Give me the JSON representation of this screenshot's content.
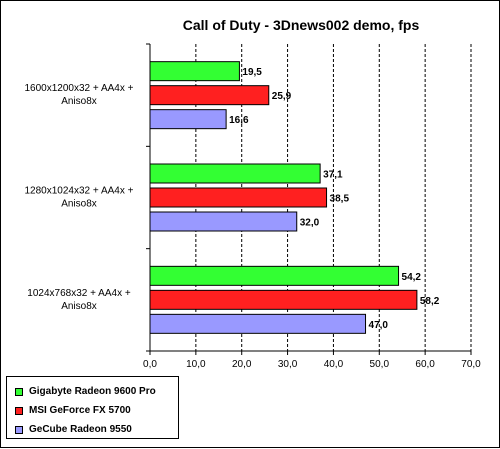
{
  "chart_data": {
    "type": "bar",
    "orientation": "horizontal",
    "title": "Call of Duty - 3Dnews002 demo, fps",
    "categories": [
      [
        "1600x1200x32 + AA4x +",
        "Aniso8x"
      ],
      [
        "1280x1024x32 + AA4x +",
        "Aniso8x"
      ],
      [
        "1024x768x32 + AA4x +",
        "Aniso8x"
      ]
    ],
    "series": [
      {
        "name": "Gigabyte Radeon 9600 Pro",
        "color": "#33ff33",
        "values": [
          19.5,
          37.1,
          54.2
        ],
        "labels": [
          "19,5",
          "37,1",
          "54,2"
        ]
      },
      {
        "name": "MSI GeForce FX 5700",
        "color": "#ff2020",
        "values": [
          25.9,
          38.5,
          58.2
        ],
        "labels": [
          "25,9",
          "38,5",
          "58,2"
        ]
      },
      {
        "name": "GeCube Radeon 9550",
        "color": "#9999ff",
        "values": [
          16.6,
          32.0,
          47.0
        ],
        "labels": [
          "16,6",
          "32,0",
          "47,0"
        ]
      }
    ],
    "xlim": [
      0,
      70
    ],
    "xticks": [
      "0,0",
      "10,0",
      "20,0",
      "30,0",
      "40,0",
      "50,0",
      "60,0",
      "70,0"
    ],
    "grid": "vertical dashed",
    "legend_position": "bottom-left"
  }
}
